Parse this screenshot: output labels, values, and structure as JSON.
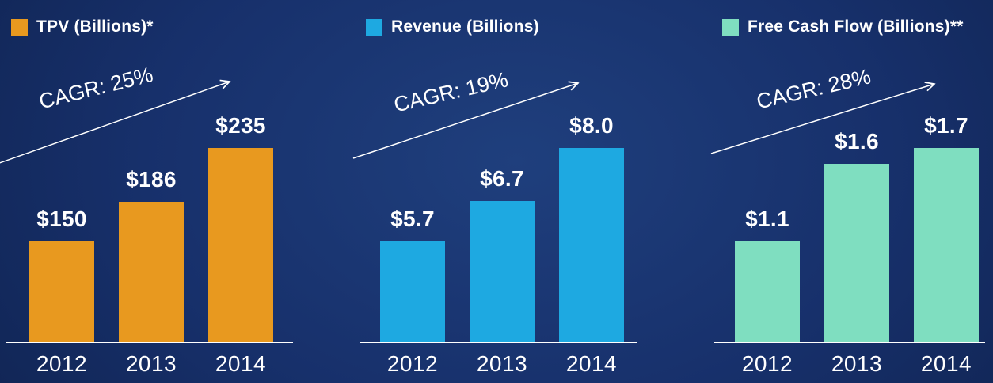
{
  "text_color": "#ffffff",
  "background_colors": {
    "outer": "#0d1f4a",
    "inner": "#1f3f7d"
  },
  "chart_data": [
    {
      "type": "bar",
      "title": "TPV (Billions)*",
      "cagr_label": "CAGR: 25%",
      "bar_color": "#E8991F",
      "categories": [
        "2012",
        "2013",
        "2014"
      ],
      "values": [
        150,
        186,
        235
      ],
      "value_labels": [
        "$150",
        "$186",
        "$235"
      ],
      "legend_position": "top-left",
      "grid": false
    },
    {
      "type": "bar",
      "title": "Revenue (Billions)",
      "cagr_label": "CAGR: 19%",
      "bar_color": "#1EA9E1",
      "categories": [
        "2012",
        "2013",
        "2014"
      ],
      "values": [
        5.7,
        6.7,
        8.0
      ],
      "value_labels": [
        "$5.7",
        "$6.7",
        "$8.0"
      ],
      "legend_position": "top-left",
      "grid": false
    },
    {
      "type": "bar",
      "title": "Free Cash Flow (Billions)**",
      "cagr_label": "CAGR: 28%",
      "bar_color": "#7FDEC0",
      "categories": [
        "2012",
        "2013",
        "2014"
      ],
      "values": [
        1.1,
        1.6,
        1.7
      ],
      "value_labels": [
        "$1.1",
        "$1.6",
        "$1.7"
      ],
      "legend_position": "top-left",
      "grid": false
    }
  ]
}
